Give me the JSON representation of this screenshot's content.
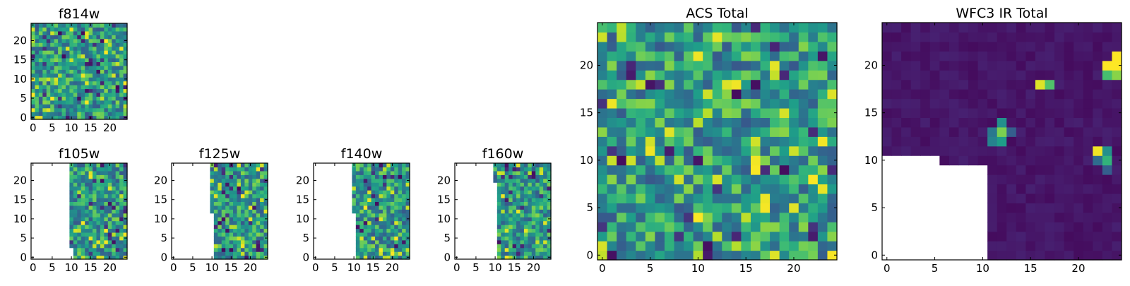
{
  "chart_data": [
    {
      "id": "f814w",
      "type": "heatmap",
      "title": "f814w",
      "x_ticks": [
        "0",
        "5",
        "10",
        "15",
        "20"
      ],
      "y_ticks": [
        "0",
        "5",
        "10",
        "15",
        "20"
      ],
      "xlim": [
        0,
        25
      ],
      "ylim": [
        0,
        25
      ],
      "colormap": "viridis",
      "masked_region": "none"
    },
    {
      "id": "f105w",
      "type": "heatmap",
      "title": "f105w",
      "x_ticks": [
        "0",
        "5",
        "10",
        "15",
        "20"
      ],
      "y_ticks": [
        "0",
        "5",
        "10",
        "15",
        "20"
      ],
      "xlim": [
        0,
        25
      ],
      "ylim": [
        0,
        25
      ],
      "colormap": "viridis",
      "masked_region": "left side, x < 10 (x < 11 for y < 3)"
    },
    {
      "id": "f125w",
      "type": "heatmap",
      "title": "f125w",
      "x_ticks": [
        "0",
        "5",
        "10",
        "15",
        "20"
      ],
      "y_ticks": [
        "0",
        "5",
        "10",
        "15",
        "20"
      ],
      "xlim": [
        0,
        25
      ],
      "ylim": [
        0,
        25
      ],
      "colormap": "viridis",
      "masked_region": "left side, x < 10 (x < 11 for y < 12)"
    },
    {
      "id": "f140w",
      "type": "heatmap",
      "title": "f140w",
      "x_ticks": [
        "0",
        "5",
        "10",
        "15",
        "20"
      ],
      "y_ticks": [
        "0",
        "5",
        "10",
        "15",
        "20"
      ],
      "xlim": [
        0,
        25
      ],
      "ylim": [
        0,
        25
      ],
      "colormap": "viridis",
      "masked_region": "left side, x < 10 (x < 11 for y < 12)"
    },
    {
      "id": "f160w",
      "type": "heatmap",
      "title": "f160w",
      "x_ticks": [
        "0",
        "5",
        "10",
        "15",
        "20"
      ],
      "y_ticks": [
        "0",
        "5",
        "10",
        "15",
        "20"
      ],
      "xlim": [
        0,
        25
      ],
      "ylim": [
        0,
        25
      ],
      "colormap": "viridis",
      "masked_region": "left side, x < 11 (x < 10 for y > 19)"
    },
    {
      "id": "acs",
      "type": "heatmap",
      "title": "ACS Total",
      "x_ticks": [
        "0",
        "5",
        "10",
        "15",
        "20"
      ],
      "y_ticks": [
        "0",
        "5",
        "10",
        "15",
        "20"
      ],
      "xlim": [
        0,
        25
      ],
      "ylim": [
        0,
        25
      ],
      "colormap": "viridis",
      "masked_region": "none"
    },
    {
      "id": "wfc3",
      "type": "heatmap",
      "title": "WFC3 IR Total",
      "x_ticks": [
        "0",
        "5",
        "10",
        "15",
        "20"
      ],
      "y_ticks": [
        "0",
        "5",
        "10",
        "15",
        "20"
      ],
      "xlim": [
        0,
        25
      ],
      "ylim": [
        0,
        25
      ],
      "colormap": "viridis",
      "masked_region": "lower-left, x < 11 for y < 10; x < 6 for y < 11",
      "hotspots": [
        {
          "x": 24,
          "y": 20,
          "level": "high"
        },
        {
          "x": 16,
          "y": 18,
          "level": "high"
        },
        {
          "x": 12,
          "y": 13,
          "level": "mid"
        },
        {
          "x": 22,
          "y": 11,
          "level": "high"
        }
      ]
    }
  ]
}
